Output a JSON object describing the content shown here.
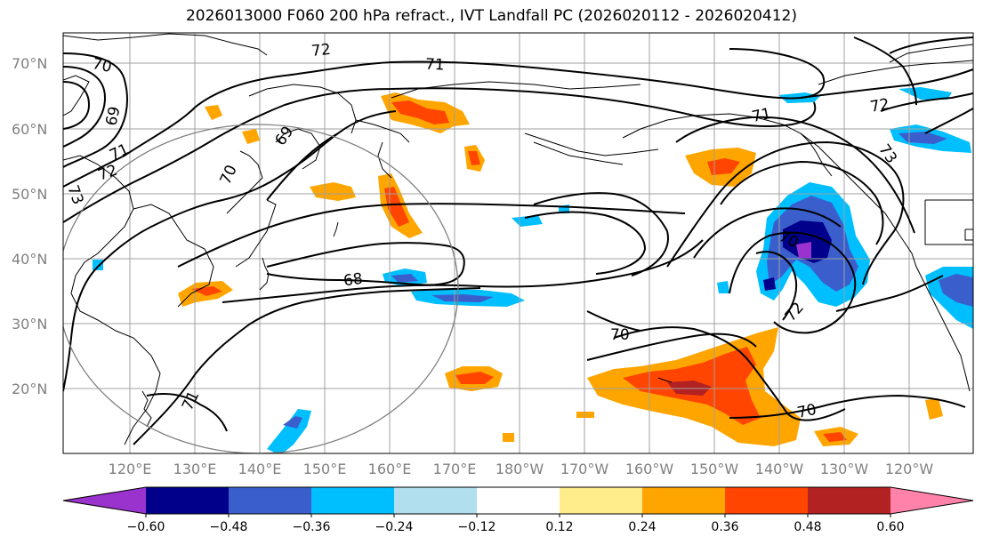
{
  "title": "2026013000 F060 200 hPa refract., IVT Landfall PC (2026020112 - 2026020412)",
  "lat_labels": [
    "70°N",
    "60°N",
    "50°N",
    "40°N",
    "30°N",
    "20°N"
  ],
  "lon_labels": [
    "120°E",
    "130°E",
    "140°E",
    "150°E",
    "160°E",
    "170°E",
    "180°W",
    "170°W",
    "160°W",
    "150°W",
    "140°W",
    "130°W",
    "120°W"
  ],
  "contour_labels": [
    "70",
    "72",
    "71",
    "69",
    "71",
    "72",
    "73",
    "70",
    "69",
    "68",
    "71",
    "72",
    "73",
    "70",
    "72",
    "70",
    "71",
    "70"
  ],
  "colorbar": {
    "colors": [
      "#9a32cd",
      "#00008b",
      "#3a5fcd",
      "#00bfff",
      "#b2dfee",
      "#ffffff",
      "#ffec8b",
      "#ffa500",
      "#ff4500",
      "#b22222",
      "#ff82ab"
    ],
    "ticks": [
      "−0.60",
      "−0.48",
      "−0.36",
      "−0.24",
      "−0.12",
      "0.12",
      "0.24",
      "0.36",
      "0.48",
      "0.60"
    ]
  }
}
